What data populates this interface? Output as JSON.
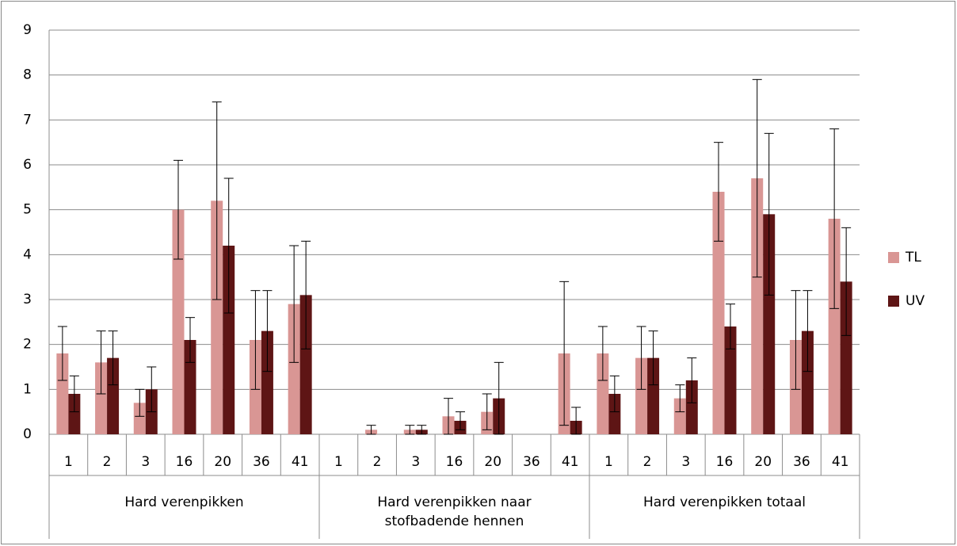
{
  "chart_data": {
    "type": "bar",
    "groups": [
      {
        "name": "Hard verenpikken",
        "categories": [
          "1",
          "2",
          "3",
          "16",
          "20",
          "36",
          "41"
        ]
      },
      {
        "name": "Hard verenpikken naar stofbadende hennen",
        "categories": [
          "1",
          "2",
          "3",
          "16",
          "20",
          "36",
          "41"
        ]
      },
      {
        "name": "Hard verenpikken totaal",
        "categories": [
          "1",
          "2",
          "3",
          "16",
          "20",
          "36",
          "41"
        ]
      }
    ],
    "series": [
      {
        "name": "TL",
        "color": "#d99694",
        "values": [
          1.8,
          1.6,
          0.7,
          5.0,
          5.2,
          2.1,
          2.9,
          null,
          0.1,
          0.1,
          0.4,
          0.5,
          null,
          1.8,
          1.8,
          1.7,
          0.8,
          5.4,
          5.7,
          2.1,
          4.8
        ],
        "errors": [
          0.6,
          0.7,
          0.3,
          1.1,
          2.2,
          1.1,
          1.3,
          null,
          0.1,
          0.1,
          0.4,
          0.4,
          null,
          1.6,
          0.6,
          0.7,
          0.3,
          1.1,
          2.2,
          1.1,
          2.0
        ]
      },
      {
        "name": "UV",
        "color": "#5e1515",
        "values": [
          0.9,
          1.7,
          1.0,
          2.1,
          4.2,
          2.3,
          3.1,
          null,
          null,
          0.1,
          0.3,
          0.8,
          null,
          0.3,
          0.9,
          1.7,
          1.2,
          2.4,
          4.9,
          2.3,
          3.4
        ],
        "errors": [
          0.4,
          0.6,
          0.5,
          0.5,
          1.5,
          0.9,
          1.2,
          null,
          null,
          0.1,
          0.2,
          0.8,
          null,
          0.3,
          0.4,
          0.6,
          0.5,
          0.5,
          1.8,
          0.9,
          1.2
        ]
      }
    ],
    "ylim": [
      0,
      9
    ],
    "yticks": [
      0,
      1,
      2,
      3,
      4,
      5,
      6,
      7,
      8,
      9
    ],
    "grid": true,
    "legend": "right"
  }
}
